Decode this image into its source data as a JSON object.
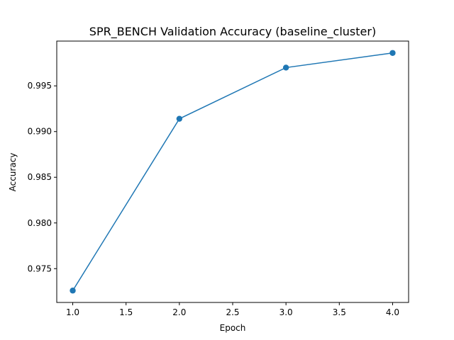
{
  "chart_data": {
    "type": "line",
    "title": "SPR_BENCH Validation Accuracy (baseline_cluster)",
    "xlabel": "Epoch",
    "ylabel": "Accuracy",
    "x": [
      1,
      2,
      3,
      4
    ],
    "series": [
      {
        "values": [
          0.9726,
          0.9914,
          0.997,
          0.9986
        ]
      }
    ],
    "xlim": [
      0.85,
      4.15
    ],
    "ylim": [
      0.9713,
      0.9999
    ],
    "xticks": [
      1.0,
      1.5,
      2.0,
      2.5,
      3.0,
      3.5,
      4.0
    ],
    "xtick_labels": [
      "1.0",
      "1.5",
      "2.0",
      "2.5",
      "3.0",
      "3.5",
      "4.0"
    ],
    "yticks": [
      0.975,
      0.98,
      0.985,
      0.99,
      0.995
    ],
    "ytick_labels": [
      "0.975",
      "0.980",
      "0.985",
      "0.990",
      "0.995"
    ],
    "grid": false,
    "line_color": "#1f77b4",
    "marker": "circle"
  }
}
